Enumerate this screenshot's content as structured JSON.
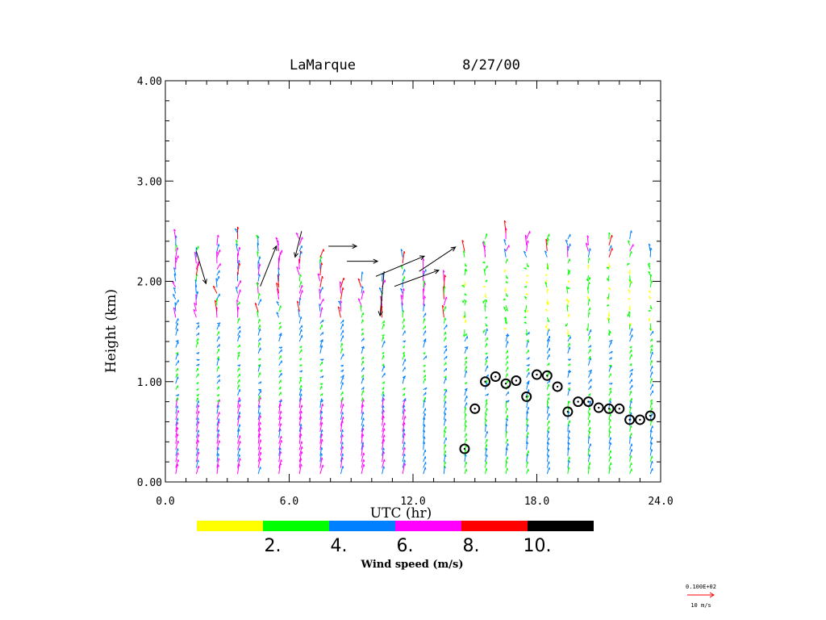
{
  "chart_data": {
    "type": "scatter",
    "subtype": "wind-profiler-barbs",
    "title_station": "LaMarque",
    "title_date": "8/27/00",
    "xlabel": "UTC (hr)",
    "ylabel": "Height (km)",
    "xlim": [
      0,
      24
    ],
    "ylim": [
      0,
      4
    ],
    "x_ticks": [
      0,
      6,
      12,
      18,
      24
    ],
    "x_tick_labels": [
      "0.0",
      "6.0",
      "12.0",
      "18.0",
      "24.0"
    ],
    "y_ticks": [
      0,
      1,
      2,
      3,
      4
    ],
    "y_tick_labels": [
      "0.00",
      "1.00",
      "2.00",
      "3.00",
      "4.00"
    ],
    "profile_times_hr": [
      0.5,
      1.5,
      2.5,
      3.5,
      4.5,
      5.5,
      6.5,
      7.5,
      8.5,
      9.5,
      10.5,
      11.5,
      12.5,
      13.5,
      14.5,
      15.5,
      16.5,
      17.5,
      18.5,
      19.5,
      20.5,
      21.5,
      22.5,
      23.5
    ],
    "profile_top_km": [
      2.45,
      2.35,
      2.4,
      2.5,
      2.45,
      2.4,
      2.45,
      2.3,
      2.0,
      2.05,
      2.05,
      2.25,
      2.15,
      2.05,
      2.35,
      2.45,
      2.5,
      2.45,
      2.45,
      2.45,
      2.4,
      2.45,
      2.45,
      2.35
    ],
    "mixing_height": {
      "x": [
        14.5,
        15.0,
        15.5,
        16.0,
        16.5,
        17.0,
        17.5,
        18.0,
        18.5,
        19.0,
        19.5,
        20.0,
        20.5,
        21.0,
        21.5,
        22.0,
        22.5,
        23.0,
        23.5
      ],
      "y": [
        0.33,
        0.73,
        1.0,
        1.05,
        0.98,
        1.01,
        0.85,
        1.07,
        1.06,
        0.95,
        0.7,
        0.8,
        0.8,
        0.74,
        0.73,
        0.73,
        0.62,
        0.62,
        0.66
      ]
    },
    "colorbar": {
      "label": "Wind speed (m/s)",
      "tick_labels": [
        "2.",
        "4.",
        "6.",
        "8.",
        "10."
      ],
      "colors": [
        "#ffff00",
        "#00ff00",
        "#0080ff",
        "#ff00ff",
        "#ff0000",
        "#000000"
      ]
    },
    "reference_vector": {
      "value_label": "0.100E+02",
      "unit_label": "10 m/s",
      "color": "#ff0000"
    }
  }
}
